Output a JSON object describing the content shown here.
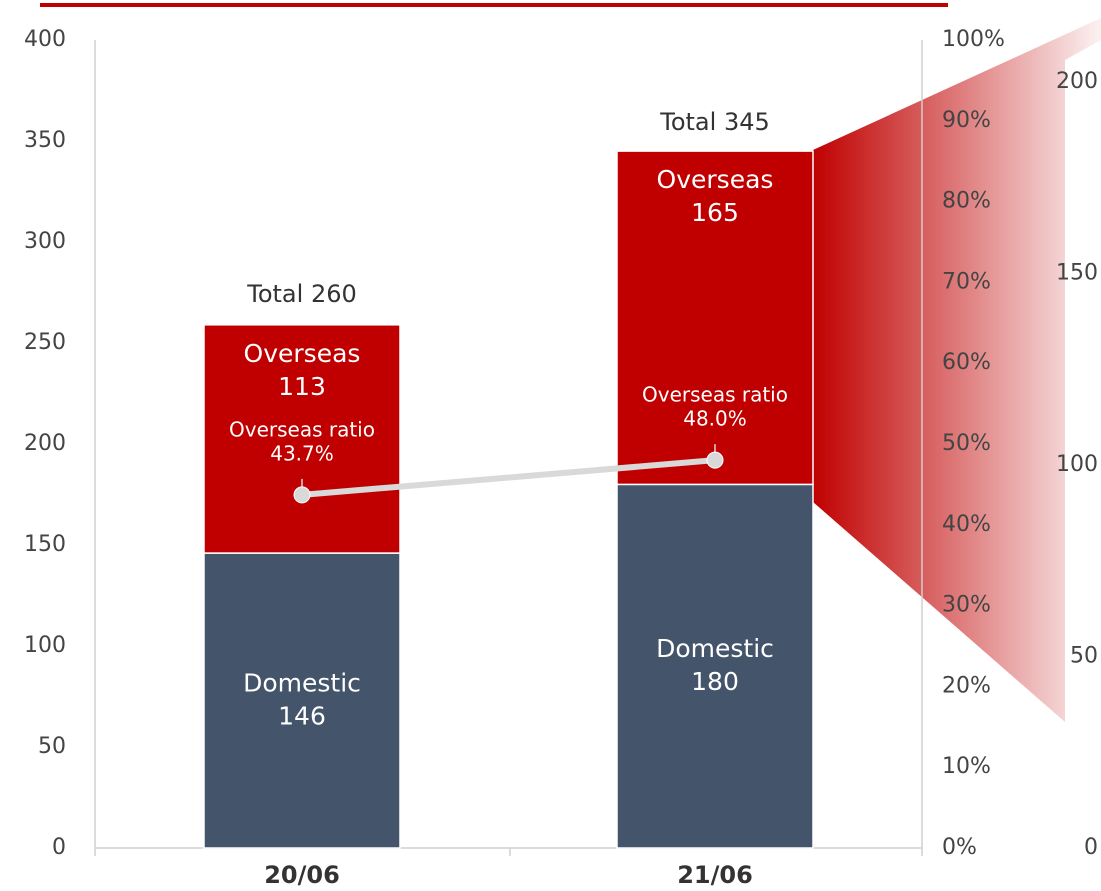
{
  "chart_data": {
    "type": "stacked_bar_line",
    "categories": [
      "20/06",
      "21/06"
    ],
    "series": [
      {
        "name": "Domestic",
        "color": "#44546a",
        "values": [
          146,
          180
        ]
      },
      {
        "name": "Overseas",
        "color": "#c00000",
        "values": [
          113,
          165
        ]
      },
      {
        "name": "Overseas ratio",
        "type": "line",
        "axis": "y2",
        "color": "#d9d9d9",
        "values": [
          43.7,
          48.0
        ],
        "value_labels": [
          "43.7%",
          "48.0%"
        ]
      }
    ],
    "total_label": "Total",
    "totals": [
      260,
      345
    ],
    "ylim": [
      0,
      400
    ],
    "yticks": [
      0,
      50,
      100,
      150,
      200,
      250,
      300,
      350,
      400
    ],
    "y2lim": [
      0,
      100
    ],
    "y2ticks": [
      {
        "value": 0,
        "label": "0%"
      },
      {
        "value": 10,
        "label": "10%"
      },
      {
        "value": 20,
        "label": "20%"
      },
      {
        "value": 30,
        "label": "30%"
      },
      {
        "value": 40,
        "label": "40%"
      },
      {
        "value": 50,
        "label": "50%"
      },
      {
        "value": 60,
        "label": "60%"
      },
      {
        "value": 70,
        "label": "70%"
      },
      {
        "value": 80,
        "label": "80%"
      },
      {
        "value": 90,
        "label": "90%"
      },
      {
        "value": 100,
        "label": "100%"
      }
    ],
    "y3lim": [
      0,
      200
    ],
    "y3ticks": [
      0,
      50,
      100,
      150,
      200
    ],
    "grid": false
  }
}
